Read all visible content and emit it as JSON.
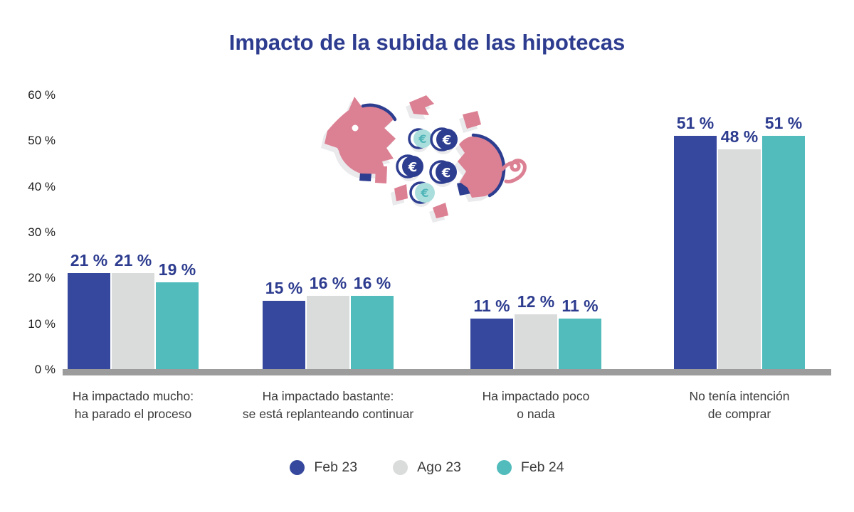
{
  "title": "Impacto de la subida de las hipotecas",
  "colors": {
    "title_text": "#2D3C8F",
    "value_label_text": "#2D3C8F",
    "axis_text": "#1C1C1C",
    "category_text": "#3B3B3B",
    "baseline": "#9B9C9B",
    "series_feb23": "#36489D",
    "series_ago23": "#DADCDB",
    "series_feb24": "#52BCBC",
    "pig_pink": "#DC8093",
    "pig_navy": "#2D3D8F",
    "coin_teal_light": "#A9DEDC",
    "coin_teal_symbol": "#4FB5B8",
    "shadow_gray": "#EAEAED"
  },
  "chart_data": {
    "type": "bar",
    "title": "Impacto de la subida de las hipotecas",
    "categories": [
      "Ha impactado mucho: ha parado el proceso",
      "Ha impactado bastante: se está replanteando continuar",
      "Ha impactado poco o nada",
      "No tenía intención de comprar"
    ],
    "categories_lines": [
      [
        "Ha impactado mucho:",
        "ha parado el proceso"
      ],
      [
        "Ha impactado bastante:",
        "se está replanteando continuar"
      ],
      [
        "Ha impactado poco",
        "o nada"
      ],
      [
        "No tenía intención",
        "de comprar"
      ]
    ],
    "series": [
      {
        "name": "Feb 23",
        "color": "#36489D",
        "values": [
          21,
          15,
          11,
          51
        ]
      },
      {
        "name": "Ago 23",
        "color": "#DADCDB",
        "values": [
          21,
          16,
          12,
          48
        ]
      },
      {
        "name": "Feb 24",
        "color": "#52BCBC",
        "values": [
          19,
          16,
          11,
          51
        ]
      }
    ],
    "value_suffix": " %",
    "data_labels": true,
    "yticks": [
      0,
      10,
      20,
      30,
      40,
      50,
      60
    ],
    "ytick_labels": [
      "0 %",
      "10 %",
      "20 %",
      "30 %",
      "40 %",
      "50 %",
      "60 %"
    ],
    "ylim": [
      0,
      60
    ],
    "grid": false,
    "legend_position": "bottom"
  },
  "illustration": {
    "description": "broken piggy bank with euro coins",
    "coin_symbol": "€"
  }
}
